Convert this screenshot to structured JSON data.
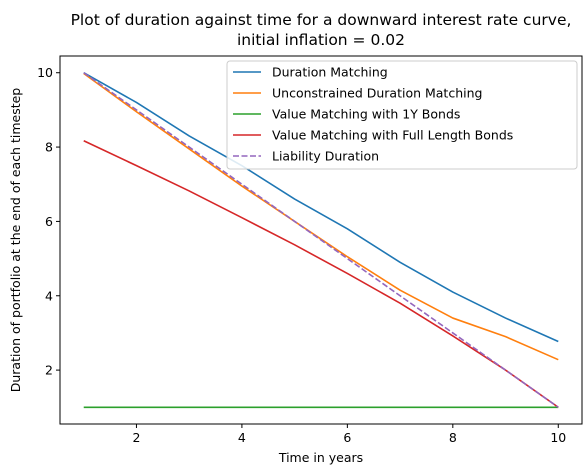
{
  "chart_data": {
    "type": "line",
    "title_lines": [
      "Plot of duration against time for a downward interest rate curve,",
      "initial inflation = 0.02"
    ],
    "xlabel": "Time in years",
    "ylabel": "Duration of portfolio at the end of each timestep",
    "xlim": [
      0.55,
      10.45
    ],
    "ylim": [
      0.55,
      10.45
    ],
    "xticks": [
      2,
      4,
      6,
      8,
      10
    ],
    "yticks": [
      2,
      4,
      6,
      8,
      10
    ],
    "grid": false,
    "legend_position": "top-right",
    "x": [
      1,
      2,
      3,
      4,
      5,
      6,
      7,
      8,
      9,
      10
    ],
    "series": [
      {
        "name": "Duration Matching",
        "color": "#1f77b4",
        "dash": "solid",
        "values": [
          10.0,
          9.2,
          8.3,
          7.5,
          6.6,
          5.8,
          4.9,
          4.1,
          3.4,
          2.77
        ]
      },
      {
        "name": "Unconstrained Duration Matching",
        "color": "#ff7f0e",
        "dash": "solid",
        "values": [
          9.98,
          8.95,
          7.95,
          6.95,
          6.0,
          5.05,
          4.15,
          3.4,
          2.9,
          2.28
        ]
      },
      {
        "name": "Value Matching with 1Y Bonds",
        "color": "#2ca02c",
        "dash": "solid",
        "values": [
          1.0,
          1.0,
          1.0,
          1.0,
          1.0,
          1.0,
          1.0,
          1.0,
          1.0,
          1.0
        ]
      },
      {
        "name": "Value Matching with Full Length Bonds",
        "color": "#d62728",
        "dash": "solid",
        "values": [
          8.17,
          7.5,
          6.82,
          6.1,
          5.37,
          4.6,
          3.8,
          2.92,
          2.0,
          1.0
        ]
      },
      {
        "name": "Liability Duration",
        "color": "#9467bd",
        "dash": "dashed",
        "values": [
          10.0,
          9.0,
          8.0,
          7.0,
          6.0,
          5.0,
          4.0,
          3.0,
          2.0,
          1.0
        ]
      }
    ]
  }
}
